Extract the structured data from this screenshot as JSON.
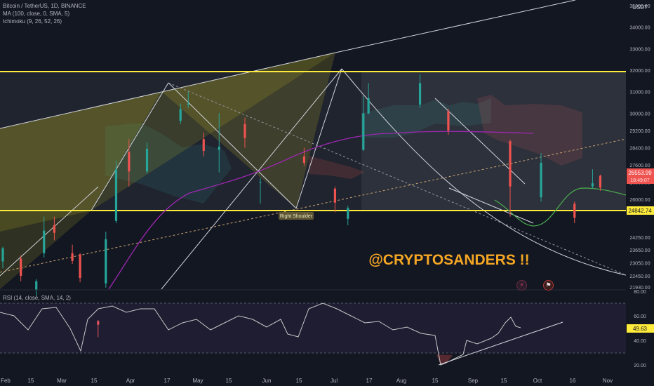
{
  "legend": {
    "title": "Bitcoin / TetherUS, 1D, BINANCE",
    "ma": "MA (100, close, 0, SMA, 5)",
    "ichimoku": "Ichimoku (9, 26, 52, 26)",
    "rsi": "RSI (14, close, SMA, 14, 2)"
  },
  "annotations": {
    "watermark": "@CRYPTOSANDERS !!",
    "right_shoulder": "Right Shoulder"
  },
  "colors": {
    "background": "#131722",
    "up": "#26a69a",
    "down": "#ef5350",
    "level_line": "#ffeb3b",
    "watermark": "#f5a623",
    "ma": "#9c27b0",
    "rsi": "#c8c8c8"
  },
  "icons": [
    "flash-icon",
    "flag-icon"
  ],
  "chart_data": [
    {
      "type": "candlestick",
      "title": "Bitcoin / TetherUS, 1D, BINANCE",
      "y_axis_label": "USDT",
      "y_ticks": [
        "35000.00",
        "34000.00",
        "33000.00",
        "32000.00",
        "31000.00",
        "30000.00",
        "29200.00",
        "28400.00",
        "27600.00",
        "26800.00",
        "26000.00",
        "25450.00",
        "24250.00",
        "23650.00",
        "23050.00",
        "22450.00",
        "21930.00"
      ],
      "x_ticks": [
        "Feb",
        "15",
        "Mar",
        "15",
        "Apr",
        "17",
        "May",
        "15",
        "Jun",
        "15",
        "Jul",
        "17",
        "Aug",
        "15",
        "Sep",
        "15",
        "Oct",
        "16",
        "Nov"
      ],
      "last_price_label": "26553.99",
      "countdown_label": "18:49:07",
      "level_label": "24842.74",
      "levels": [
        31700,
        24842.74
      ],
      "ohlc": [
        {
          "date": "2023-02-01",
          "o": 23120,
          "h": 23800,
          "l": 22800,
          "c": 23730
        },
        {
          "date": "2023-02-08",
          "o": 23250,
          "h": 23400,
          "l": 22200,
          "c": 22450
        },
        {
          "date": "2023-02-14",
          "o": 21800,
          "h": 22300,
          "l": 21500,
          "c": 22200
        },
        {
          "date": "2023-02-17",
          "o": 23500,
          "h": 25200,
          "l": 23300,
          "c": 24550
        },
        {
          "date": "2023-02-21",
          "o": 24800,
          "h": 25200,
          "l": 24100,
          "c": 24450
        },
        {
          "date": "2023-02-28",
          "o": 23500,
          "h": 23900,
          "l": 23000,
          "c": 23140
        },
        {
          "date": "2023-03-03",
          "o": 23450,
          "h": 23500,
          "l": 22150,
          "c": 22350
        },
        {
          "date": "2023-03-10",
          "o": 20350,
          "h": 20400,
          "l": 19600,
          "c": 20180
        },
        {
          "date": "2023-03-13",
          "o": 22100,
          "h": 24500,
          "l": 21900,
          "c": 24150
        },
        {
          "date": "2023-03-17",
          "o": 25000,
          "h": 27800,
          "l": 24900,
          "c": 27400
        },
        {
          "date": "2023-03-22",
          "o": 28200,
          "h": 28800,
          "l": 26600,
          "c": 27300
        },
        {
          "date": "2023-03-29",
          "o": 27300,
          "h": 28650,
          "l": 27200,
          "c": 28350
        },
        {
          "date": "2023-04-11",
          "o": 29650,
          "h": 30450,
          "l": 29500,
          "c": 30200
        },
        {
          "date": "2023-04-14",
          "o": 30400,
          "h": 31000,
          "l": 30250,
          "c": 30450
        },
        {
          "date": "2023-04-20",
          "o": 28800,
          "h": 29100,
          "l": 28000,
          "c": 28250
        },
        {
          "date": "2023-04-26",
          "o": 28300,
          "h": 30000,
          "l": 27250,
          "c": 28450
        },
        {
          "date": "2023-05-06",
          "o": 29500,
          "h": 29800,
          "l": 28400,
          "c": 28850
        },
        {
          "date": "2023-05-12",
          "o": 26800,
          "h": 27000,
          "l": 25800,
          "c": 26800
        },
        {
          "date": "2023-05-29",
          "o": 28000,
          "h": 28400,
          "l": 27550,
          "c": 27700
        },
        {
          "date": "2023-06-10",
          "o": 26500,
          "h": 26600,
          "l": 25400,
          "c": 25850
        },
        {
          "date": "2023-06-15",
          "o": 25100,
          "h": 25700,
          "l": 24800,
          "c": 25600
        },
        {
          "date": "2023-06-21",
          "o": 28300,
          "h": 30800,
          "l": 28250,
          "c": 30000
        },
        {
          "date": "2023-06-23",
          "o": 30000,
          "h": 31400,
          "l": 29950,
          "c": 30700
        },
        {
          "date": "2023-07-13",
          "o": 30400,
          "h": 31800,
          "l": 30250,
          "c": 31400
        },
        {
          "date": "2023-07-24",
          "o": 30100,
          "h": 30200,
          "l": 29000,
          "c": 29200
        },
        {
          "date": "2023-08-17",
          "o": 28700,
          "h": 28780,
          "l": 25200,
          "c": 26600
        },
        {
          "date": "2023-08-29",
          "o": 26100,
          "h": 28150,
          "l": 25900,
          "c": 27700
        },
        {
          "date": "2023-09-11",
          "o": 25800,
          "h": 25900,
          "l": 24900,
          "c": 25150
        },
        {
          "date": "2023-09-18",
          "o": 26600,
          "h": 27400,
          "l": 26500,
          "c": 26750
        },
        {
          "date": "2023-09-21",
          "o": 27100,
          "h": 27150,
          "l": 26400,
          "c": 26550
        }
      ]
    },
    {
      "type": "line",
      "title": "RSI (14, close, SMA, 14, 2)",
      "y_ticks": [
        "80.00",
        "60.00",
        "40.00",
        "20.00"
      ],
      "last_value_label": "49.63"
    }
  ]
}
